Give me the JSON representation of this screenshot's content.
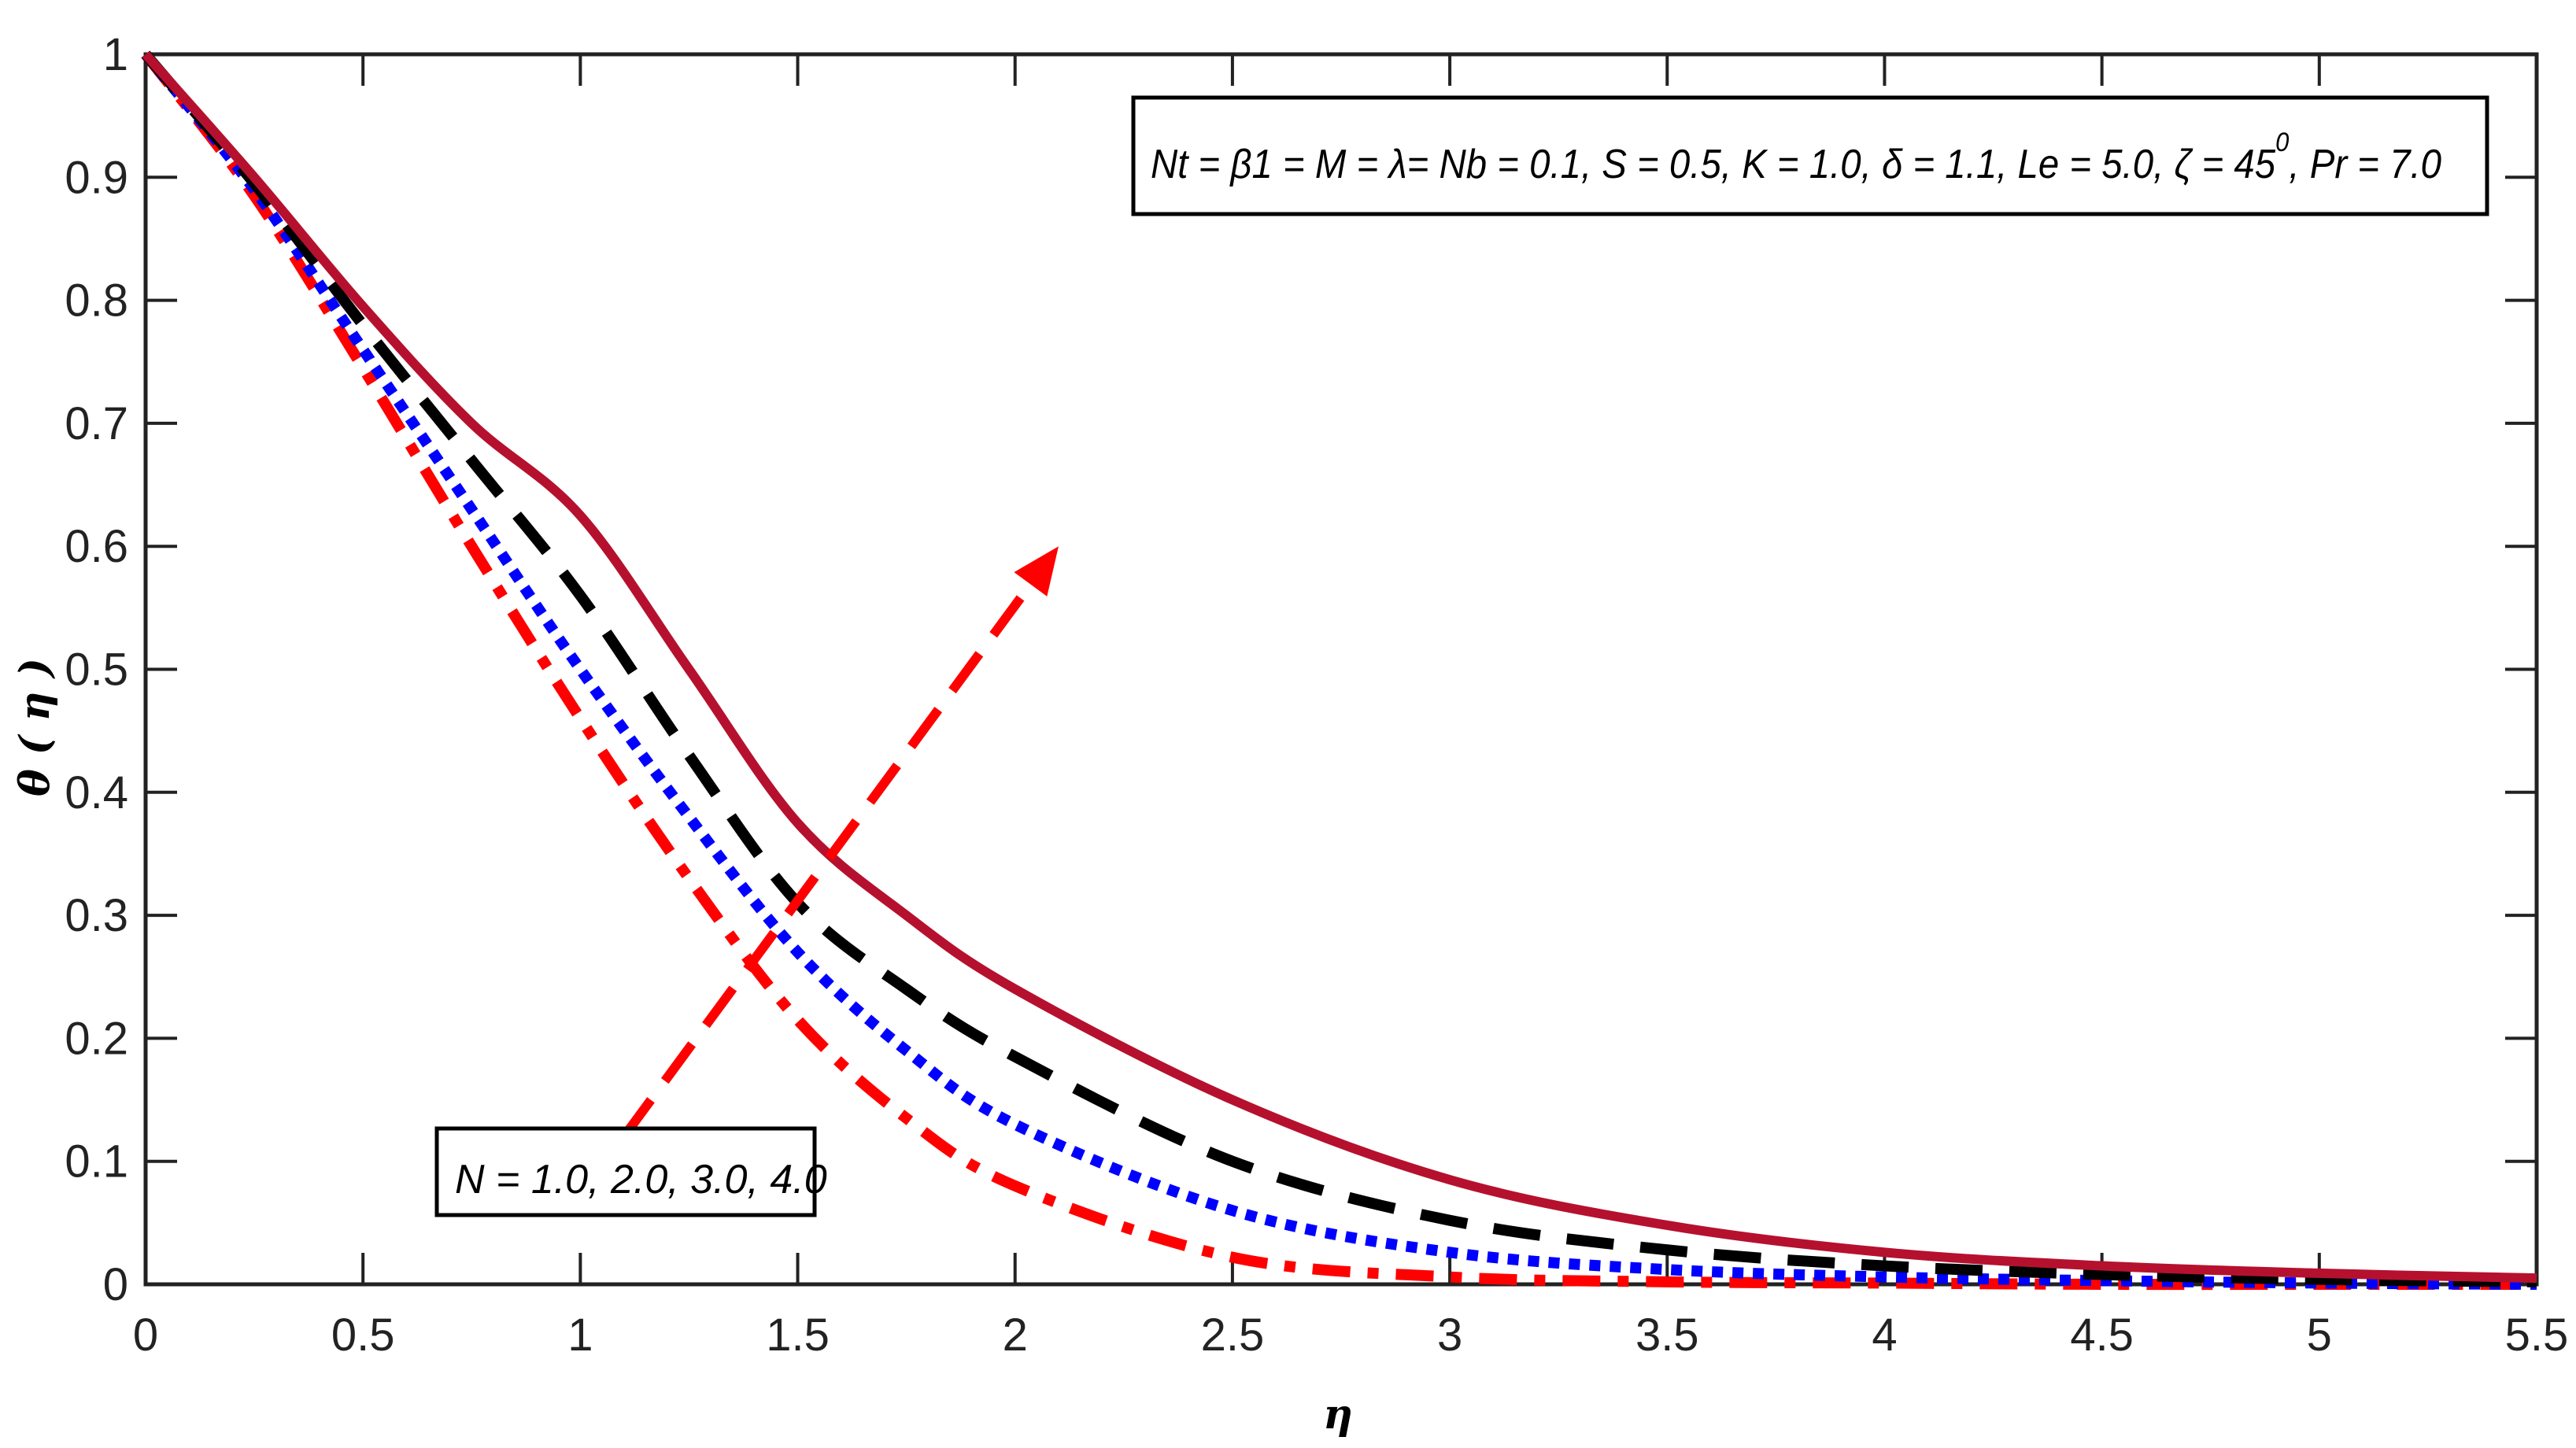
{
  "chart_data": {
    "type": "line",
    "title": "",
    "xlabel": "η",
    "ylabel": "θ ( η )",
    "xlim": [
      0,
      5.5
    ],
    "ylim": [
      0,
      1
    ],
    "grid": false,
    "xticks": [
      "0",
      "0.5",
      "1",
      "1.5",
      "2",
      "2.5",
      "3",
      "3.5",
      "4",
      "4.5",
      "5",
      "5.5"
    ],
    "yticks": [
      "0",
      "0.1",
      "0.2",
      "0.3",
      "0.4",
      "0.5",
      "0.6",
      "0.7",
      "0.8",
      "0.9",
      "1"
    ],
    "x": [
      0,
      0.25,
      0.5,
      0.75,
      1.0,
      1.25,
      1.5,
      1.75,
      2.0,
      2.5,
      3.0,
      3.5,
      4.0,
      4.5,
      5.0,
      5.5
    ],
    "series": [
      {
        "name": "N = 1.0",
        "color": "#ff0000",
        "style": "dash-dot",
        "values": [
          1.0,
          0.885,
          0.745,
          0.6,
          0.46,
          0.33,
          0.215,
          0.135,
          0.08,
          0.022,
          0.006,
          0.002,
          0.001,
          0.0,
          0.0,
          0.0
        ]
      },
      {
        "name": "N = 2.0",
        "color": "#0000ff",
        "style": "dotted",
        "values": [
          1.0,
          0.89,
          0.76,
          0.63,
          0.5,
          0.38,
          0.27,
          0.19,
          0.13,
          0.06,
          0.026,
          0.012,
          0.006,
          0.003,
          0.001,
          0.0
        ]
      },
      {
        "name": "N = 3.0",
        "color": "#000000",
        "style": "dashed",
        "values": [
          1.0,
          0.895,
          0.78,
          0.67,
          0.56,
          0.43,
          0.31,
          0.24,
          0.185,
          0.1,
          0.052,
          0.028,
          0.015,
          0.008,
          0.004,
          0.002
        ]
      },
      {
        "name": "N = 4.0",
        "color": "#b5112e",
        "style": "solid",
        "values": [
          1.0,
          0.9,
          0.795,
          0.7,
          0.625,
          0.5,
          0.375,
          0.3,
          0.24,
          0.15,
          0.085,
          0.048,
          0.026,
          0.015,
          0.009,
          0.005
        ]
      }
    ],
    "annotations": [
      {
        "type": "text-box",
        "text": "Nt = β1 = M = λ= Nb = 0.1, S = 0.5, K = 1.0, δ = 1.1, Le = 5.0, ζ = 45°, Pr = 7.0",
        "position": "top-right"
      },
      {
        "type": "text-box",
        "text": "N = 1.0, 2.0, 3.0, 4.0",
        "position": "bottom-left"
      },
      {
        "type": "arrow",
        "style": "dashed",
        "color": "#ff0000",
        "from": [
          1.1,
          0.12
        ],
        "to": [
          2.1,
          0.6
        ],
        "meaning": "increasing N"
      }
    ]
  },
  "legend": {
    "params_text": "Nt = β1 = M = λ= Nb = 0.1, S = 0.5, K = 1.0, δ = 1.1, Le = 5.0, ζ = 45",
    "params_superscript": "0",
    "params_tail": ", Pr = 7.0",
    "n_text": "N = 1.0, 2.0, 3.0, 4.0"
  },
  "axes": {
    "xlabel": "η",
    "ylabel": "θ ( η )"
  }
}
